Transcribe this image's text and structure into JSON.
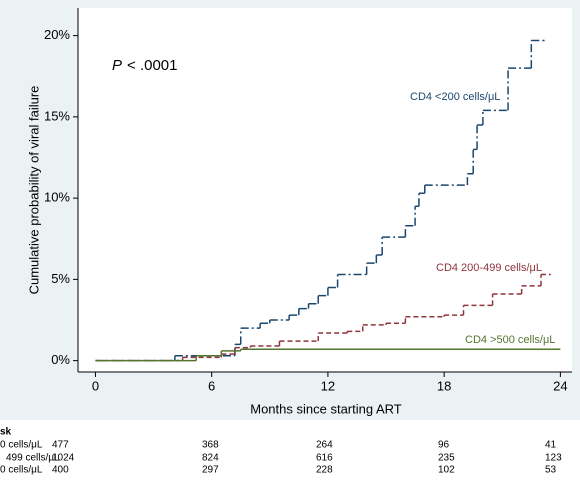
{
  "chart_data": {
    "type": "step",
    "ylabel": "Cumulative probability of viral failure",
    "xlabel": "Months since starting ART",
    "annotation": {
      "italic": "P",
      "text": "< .0001"
    },
    "xlim": [
      -0.9,
      24.6
    ],
    "ylim": [
      -0.7,
      21.7
    ],
    "xticks": [
      0,
      6,
      12,
      18,
      24
    ],
    "yticks": [
      {
        "value": 0,
        "label": "0%"
      },
      {
        "value": 5,
        "label": "5%"
      },
      {
        "value": 10,
        "label": "10%"
      },
      {
        "value": 15,
        "label": "15%"
      },
      {
        "value": 20,
        "label": "20%"
      }
    ],
    "series": [
      {
        "name": "CD4 <200 cells/μL",
        "color": "#1a476f",
        "dash": "8,3,2,3",
        "x": [
          0,
          4.1,
          7.2,
          7.5,
          8.5,
          9,
          10,
          10.5,
          11,
          11.5,
          12,
          12.5,
          14,
          14.5,
          14.8,
          16,
          16.5,
          16.7,
          17,
          19.2,
          19.5,
          19.7,
          20,
          21.3,
          22.5,
          23.2
        ],
        "values": [
          0,
          0.3,
          1,
          2,
          2.3,
          2.5,
          2.8,
          3.2,
          3.5,
          4,
          4.5,
          5.3,
          6,
          6.5,
          7.6,
          8.3,
          9.5,
          10.3,
          10.8,
          11.5,
          13,
          14.5,
          15.4,
          18,
          19.7,
          19.7
        ]
      },
      {
        "name": "CD4 200-499 cells/μL",
        "color": "#90353b",
        "dash": "5,3",
        "x": [
          0,
          4.5,
          6.5,
          7.2,
          8,
          9.5,
          11.5,
          13,
          13.8,
          15,
          16,
          18,
          19,
          20.5,
          22,
          23,
          23.5
        ],
        "values": [
          0,
          0.2,
          0.4,
          0.8,
          0.9,
          1.2,
          1.7,
          1.8,
          2.2,
          2.3,
          2.7,
          2.8,
          3.4,
          4.1,
          4.6,
          5.3,
          5.3
        ]
      },
      {
        "name": "CD4 >500 cells/μL",
        "color": "#55752f",
        "dash": "",
        "x": [
          0,
          5.2,
          6.5,
          7.5,
          24
        ],
        "values": [
          0,
          0.3,
          0.6,
          0.7,
          0.7
        ]
      }
    ],
    "risk_table": {
      "header": "sk",
      "rows": [
        {
          "label": "0 cells/μL",
          "values": [
            477,
            368,
            264,
            96,
            41
          ]
        },
        {
          "label": "499 cells/μL",
          "values": [
            1024,
            824,
            616,
            235,
            123
          ]
        },
        {
          "label": "0 cells/μL",
          "values": [
            400,
            297,
            228,
            102,
            53
          ]
        }
      ]
    }
  }
}
